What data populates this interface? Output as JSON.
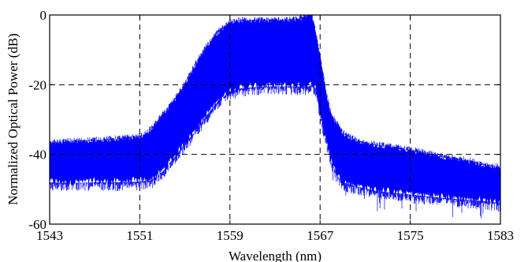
{
  "chart_data": {
    "type": "area",
    "title": "",
    "xlabel": "Wavelength (nm)",
    "ylabel": "Normalized Optical Power (dB)",
    "xlim": [
      1543,
      1583
    ],
    "ylim": [
      -60,
      0
    ],
    "xticks": [
      1543,
      1551,
      1559,
      1567,
      1575,
      1583
    ],
    "yticks": [
      0,
      -20,
      -40,
      -60
    ],
    "xtick_labels": [
      "1543",
      "1551",
      "1559",
      "1567",
      "1575",
      "1583"
    ],
    "ytick_labels": [
      "0",
      "-20",
      "-40",
      "-60"
    ],
    "grid": true,
    "grid_style": "dashed",
    "series": [
      {
        "color": "#0000ff",
        "upper_envelope": {
          "x": [
            1543,
            1545,
            1547,
            1549,
            1550,
            1551,
            1551.5,
            1552,
            1553,
            1554,
            1555,
            1556,
            1557,
            1558,
            1559,
            1559.5,
            1560,
            1562,
            1564,
            1565,
            1565.5,
            1566,
            1566.2,
            1566.5,
            1567,
            1567.5,
            1568,
            1569,
            1570,
            1571,
            1572,
            1575,
            1578,
            1580,
            1582,
            1583
          ],
          "y": [
            -37,
            -36.5,
            -36.2,
            -35.8,
            -35.5,
            -35.2,
            -34.5,
            -33,
            -29,
            -25,
            -20,
            -14,
            -9,
            -5,
            -2.5,
            -2,
            -1.8,
            -1.8,
            -1.8,
            -1.5,
            -1,
            -0.3,
            0,
            -3,
            -12,
            -22,
            -29,
            -34,
            -36,
            -37,
            -37.5,
            -39,
            -41,
            -42,
            -43.5,
            -44
          ]
        },
        "lower_envelope": {
          "x": [
            1543,
            1545,
            1547,
            1549,
            1551,
            1552,
            1553,
            1554,
            1555,
            1556,
            1557,
            1558,
            1559,
            1560,
            1562,
            1564,
            1565,
            1566,
            1566.3,
            1566.6,
            1567,
            1567.5,
            1568,
            1568.5,
            1569,
            1570,
            1572,
            1575,
            1578,
            1580,
            1582,
            1583
          ],
          "y": [
            -48,
            -48.2,
            -48,
            -48,
            -47.8,
            -47.5,
            -45,
            -41,
            -37,
            -33,
            -28.5,
            -24.5,
            -22,
            -21,
            -20.5,
            -20.5,
            -20.5,
            -20.5,
            -20,
            -21,
            -28,
            -36,
            -42,
            -46,
            -48,
            -49,
            -50.5,
            -51.5,
            -52.5,
            -53,
            -53.5,
            -54
          ]
        }
      }
    ]
  }
}
